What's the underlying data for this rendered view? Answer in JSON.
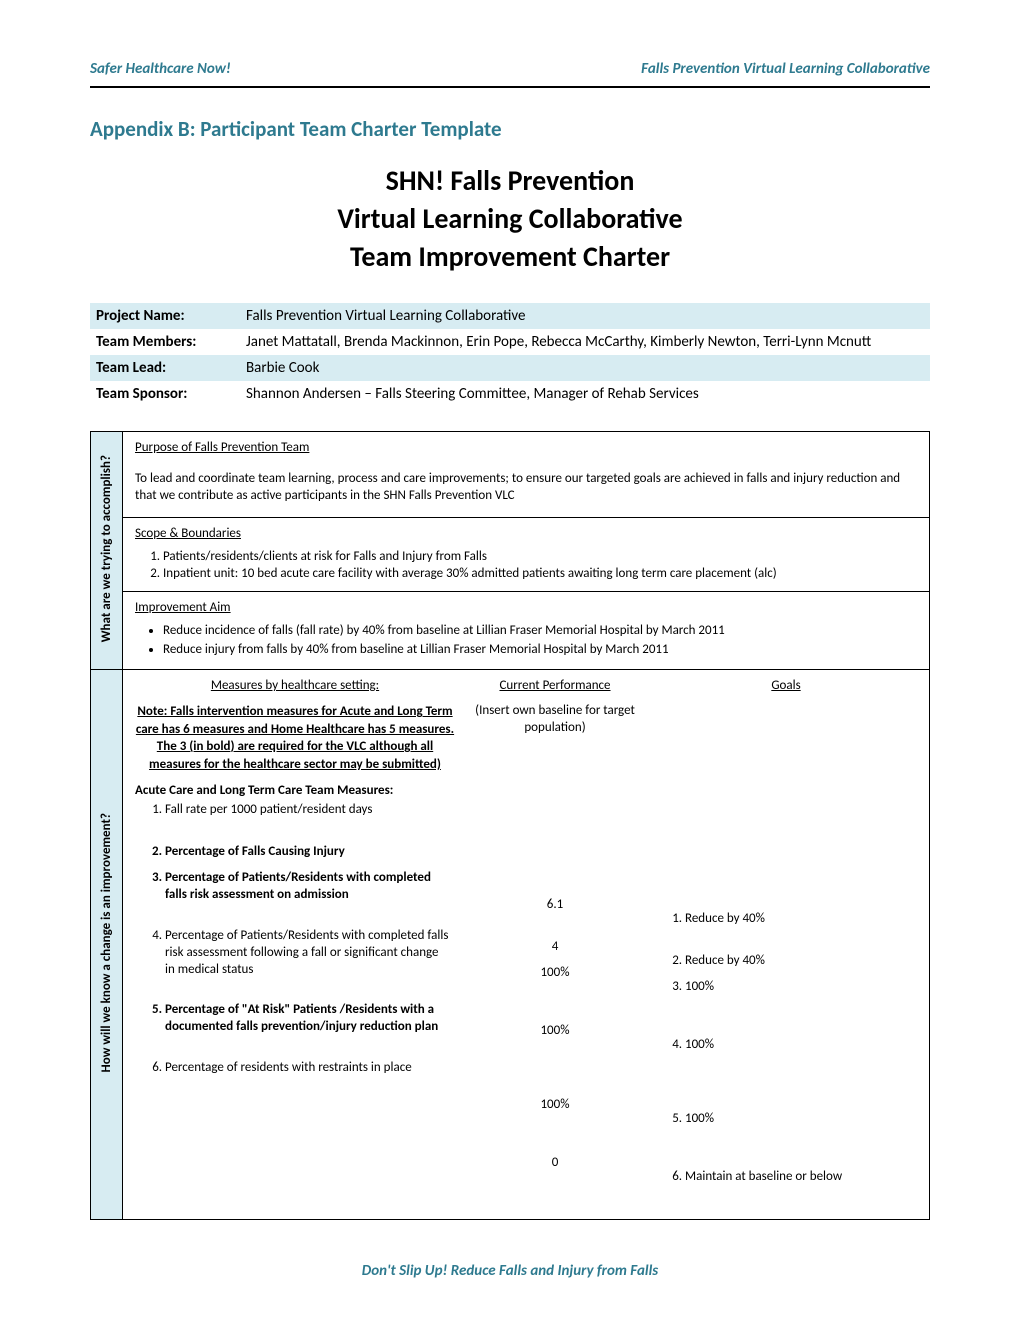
{
  "header": {
    "left": "Safer Healthcare Now!",
    "right": "Falls Prevention Virtual Learning Collaborative"
  },
  "appendix_title": "Appendix B: Participant Team Charter Template",
  "main_title": {
    "line1": "SHN! Falls Prevention",
    "line2": "Virtual Learning Collaborative",
    "line3": "Team Improvement Charter"
  },
  "info": {
    "project_name_label": "Project Name:",
    "project_name": "Falls Prevention Virtual Learning Collaborative",
    "team_members_label": "Team Members:",
    "team_members": "Janet Mattatall, Brenda Mackinnon,  Erin Pope, Rebecca McCarthy, Kimberly Newton, Terri-Lynn Mcnutt",
    "team_lead_label": "Team Lead:",
    "team_lead": "Barbie Cook",
    "team_sponsor_label": "Team Sponsor:",
    "team_sponsor": "Shannon Andersen – Falls Steering Committee, Manager of Rehab Services"
  },
  "section1": {
    "sidebar": "What are we trying to accomplish?",
    "purpose_heading": "Purpose of Falls Prevention Team",
    "purpose_body": "To lead and coordinate team learning, process and care improvements; to ensure our targeted goals are achieved in falls and injury reduction and that we contribute as active participants in the SHN Falls Prevention VLC",
    "scope_heading": "Scope & Boundaries",
    "scope_item1": "Patients/residents/clients at risk for Falls and Injury from Falls",
    "scope_item2": "Inpatient unit:  10 bed acute care facility with average 30% admitted patients awaiting long term care placement (alc)",
    "aim_heading": "Improvement Aim",
    "aim_item1": "Reduce incidence of falls (fall rate) by 40% from baseline at Lillian Fraser Memorial Hospital by March 2011",
    "aim_item2": "Reduce injury from falls by 40% from baseline at Lillian Fraser Memorial Hospital by March 2011"
  },
  "section2": {
    "sidebar": "How will we know a change is an improvement?",
    "col1_header": "Measures by healthcare setting:",
    "col2_header": "Current Performance",
    "col3_header": "Goals",
    "note": "Note: Falls intervention measures for Acute and Long Term care has 6 measures and Home Healthcare has 5 measures. The 3 (in bold) are required for the VLC although all measures for the healthcare sector may be submitted)",
    "insert_note": "(Insert own baseline for target population)",
    "team_measures_label": "Acute Care and Long Term Care Team Measures:",
    "measures": [
      {
        "text": "Fall rate per 1000 patient/resident days",
        "bold": false
      },
      {
        "text": "Percentage of Falls Causing Injury",
        "bold": true
      },
      {
        "text": "Percentage of Patients/Residents with completed falls risk assessment on admission",
        "bold": true
      },
      {
        "text": "Percentage of Patients/Residents with completed falls risk assessment following a fall or significant change in medical status",
        "bold": false
      },
      {
        "text": "Percentage of \"At Risk\" Patients /Residents with a documented falls prevention/injury reduction plan",
        "bold": true
      },
      {
        "text": "Percentage of residents with restraints in place",
        "bold": false
      }
    ],
    "performance": [
      "6.1",
      "4",
      "100%",
      "100%",
      "100%",
      "0"
    ],
    "goals": [
      "Reduce by 40%",
      "Reduce by 40%",
      "100%",
      "100%",
      "100%",
      "Maintain at baseline or below"
    ]
  },
  "footer": "Don't Slip Up! Reduce Falls and Injury from Falls"
}
